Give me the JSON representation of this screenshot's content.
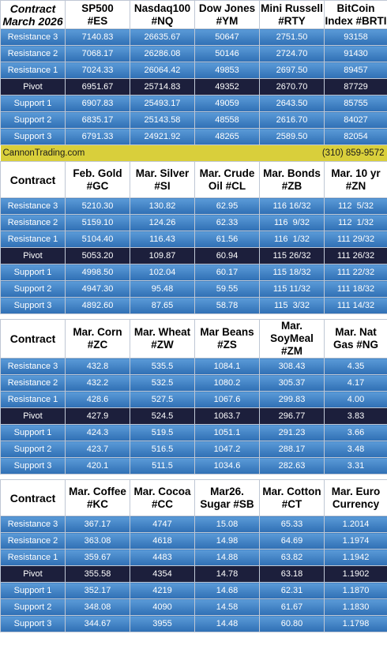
{
  "sections": [
    {
      "headers": [
        "Contract\nMarch 2026",
        "SP500\n#ES",
        "Nasdaq100\n#NQ",
        "Dow Jones\n#YM",
        "Mini Russell\n#RTY",
        "BitCoin\nIndex #BRTI"
      ],
      "rows": [
        {
          "label": "Resistance 3",
          "values": [
            "7140.83",
            "26635.67",
            "50647",
            "2751.50",
            "93158"
          ]
        },
        {
          "label": "Resistance 2",
          "values": [
            "7068.17",
            "26286.08",
            "50146",
            "2724.70",
            "91430"
          ]
        },
        {
          "label": "Resistance 1",
          "values": [
            "7024.33",
            "26064.42",
            "49853",
            "2697.50",
            "89457"
          ]
        },
        {
          "label": "Pivot",
          "values": [
            "6951.67",
            "25714.83",
            "49352",
            "2670.70",
            "87729"
          ]
        },
        {
          "label": "Support 1",
          "values": [
            "6907.83",
            "25493.17",
            "49059",
            "2643.50",
            "85755"
          ]
        },
        {
          "label": "Support 2",
          "values": [
            "6835.17",
            "25143.58",
            "48558",
            "2616.70",
            "84027"
          ]
        },
        {
          "label": "Support 3",
          "values": [
            "6791.33",
            "24921.92",
            "48265",
            "2589.50",
            "82054"
          ]
        }
      ]
    },
    {
      "headers": [
        "Contract",
        "Feb. Gold\n#GC",
        "Mar. Silver\n#SI",
        "Mar. Crude\nOil #CL",
        "Mar. Bonds\n#ZB",
        "Mar. 10 yr\n#ZN"
      ],
      "rows": [
        {
          "label": "Resistance 3",
          "values": [
            "5210.30",
            "130.82",
            "62.95",
            "116 16/32",
            "112  5/32"
          ]
        },
        {
          "label": "Resistance 2",
          "values": [
            "5159.10",
            "124.26",
            "62.33",
            "116  9/32",
            "112  1/32"
          ]
        },
        {
          "label": "Resistance 1",
          "values": [
            "5104.40",
            "116.43",
            "61.56",
            "116  1/32",
            "111 29/32"
          ]
        },
        {
          "label": "Pivot",
          "values": [
            "5053.20",
            "109.87",
            "60.94",
            "115 26/32",
            "111 26/32"
          ]
        },
        {
          "label": "Support 1",
          "values": [
            "4998.50",
            "102.04",
            "60.17",
            "115 18/32",
            "111 22/32"
          ]
        },
        {
          "label": "Support 2",
          "values": [
            "4947.30",
            "95.48",
            "59.55",
            "115 11/32",
            "111 18/32"
          ]
        },
        {
          "label": "Support 3",
          "values": [
            "4892.60",
            "87.65",
            "58.78",
            "115  3/32",
            "111 14/32"
          ]
        }
      ]
    },
    {
      "headers": [
        "Contract",
        "Mar. Corn\n#ZC",
        "Mar.  Wheat\n#ZW",
        "Mar Beans\n#ZS",
        "Mar.\nSoyMeal\n#ZM",
        "Mar. Nat\nGas #NG"
      ],
      "rows": [
        {
          "label": "Resistance 3",
          "values": [
            "432.8",
            "535.5",
            "1084.1",
            "308.43",
            "4.35"
          ]
        },
        {
          "label": "Resistance 2",
          "values": [
            "432.2",
            "532.5",
            "1080.2",
            "305.37",
            "4.17"
          ]
        },
        {
          "label": "Resistance 1",
          "values": [
            "428.6",
            "527.5",
            "1067.6",
            "299.83",
            "4.00"
          ]
        },
        {
          "label": "Pivot",
          "values": [
            "427.9",
            "524.5",
            "1063.7",
            "296.77",
            "3.83"
          ]
        },
        {
          "label": "Support 1",
          "values": [
            "424.3",
            "519.5",
            "1051.1",
            "291.23",
            "3.66"
          ]
        },
        {
          "label": "Support 2",
          "values": [
            "423.7",
            "516.5",
            "1047.2",
            "288.17",
            "3.48"
          ]
        },
        {
          "label": "Support 3",
          "values": [
            "420.1",
            "511.5",
            "1034.6",
            "282.63",
            "3.31"
          ]
        }
      ]
    },
    {
      "headers": [
        "Contract",
        "Mar. Coffee\n#KC",
        "Mar. Cocoa\n#CC",
        "Mar26.\nSugar #SB",
        "Mar. Cotton\n#CT",
        "Mar. Euro\nCurrency"
      ],
      "rows": [
        {
          "label": "Resistance 3",
          "values": [
            "367.17",
            "4747",
            "15.08",
            "65.33",
            "1.2014"
          ]
        },
        {
          "label": "Resistance 2",
          "values": [
            "363.08",
            "4618",
            "14.98",
            "64.69",
            "1.1974"
          ]
        },
        {
          "label": "Resistance 1",
          "values": [
            "359.67",
            "4483",
            "14.88",
            "63.82",
            "1.1942"
          ]
        },
        {
          "label": "Pivot",
          "values": [
            "355.58",
            "4354",
            "14.78",
            "63.18",
            "1.1902"
          ]
        },
        {
          "label": "Support 1",
          "values": [
            "352.17",
            "4219",
            "14.68",
            "62.31",
            "1.1870"
          ]
        },
        {
          "label": "Support 2",
          "values": [
            "348.08",
            "4090",
            "14.58",
            "61.67",
            "1.1830"
          ]
        },
        {
          "label": "Support 3",
          "values": [
            "344.67",
            "3955",
            "14.48",
            "60.80",
            "1.1798"
          ]
        }
      ]
    }
  ],
  "banner": {
    "left": "CannonTrading.com",
    "right": "(310) 859-9572"
  },
  "colors": {
    "row_top": "#5b9bd8",
    "row_bottom": "#2f6fb4",
    "pivot": "#1c1f3c",
    "banner": "#d9cf3b"
  }
}
